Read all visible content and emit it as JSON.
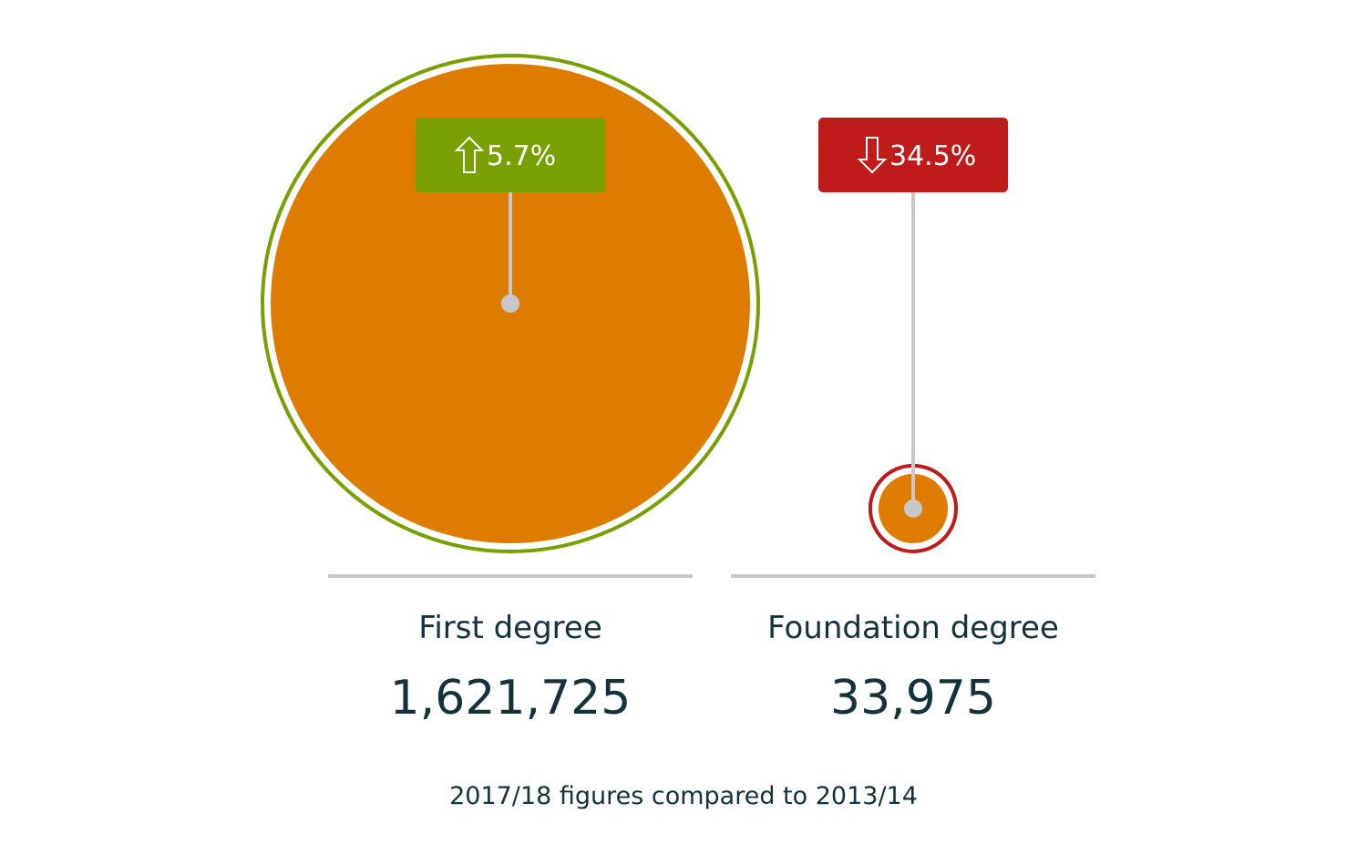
{
  "chart_data": {
    "type": "bubble",
    "categories": [
      "First degree",
      "Foundation degree"
    ],
    "values": [
      1621725,
      33975
    ],
    "value_labels": [
      "1,621,725",
      "33,975"
    ],
    "change_labels": [
      "5.7%",
      "34.5%"
    ],
    "change_values": [
      5.7,
      -34.5
    ],
    "change_directions": [
      "up",
      "down"
    ],
    "bubble_color": "#de7c00",
    "up_color": "#77a000",
    "down_color": "#bf1b1b",
    "leader_color": "#c8c8c8"
  },
  "footnote": "2017/18 figures compared to 2013/14"
}
